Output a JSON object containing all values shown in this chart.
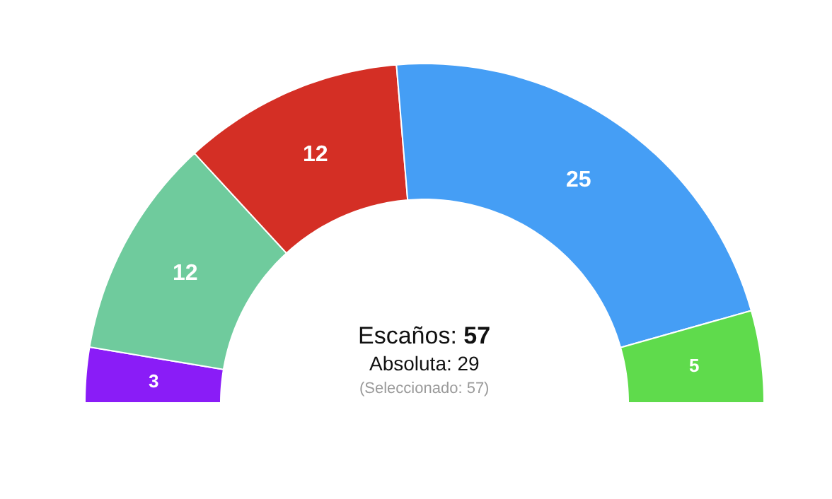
{
  "chart_data": {
    "type": "donut",
    "categories": [
      null,
      null,
      null,
      null,
      null
    ],
    "values": [
      3,
      12,
      12,
      25,
      5
    ],
    "colors": [
      "#8a1cf7",
      "#6fcb9d",
      "#d42f25",
      "#459ef5",
      "#5fdb4c"
    ],
    "data_labels": true,
    "annotations": [
      "Escaños: 57",
      "Absoluta: 29",
      "(Seleccionado: 57)"
    ]
  }
}
